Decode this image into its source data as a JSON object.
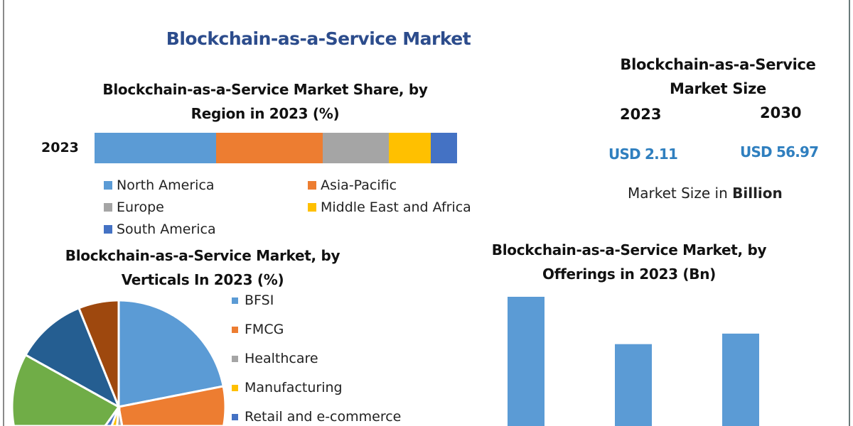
{
  "title": "Blockchain-as-a-Service Market",
  "market_size": {
    "title_line1": "Blockchain-as-a-Service",
    "title_line2": "Market Size",
    "year_a": "2023",
    "year_b": "2030",
    "value_a": "USD 2.11",
    "value_b": "USD 56.97",
    "unit_prefix": "Market Size in ",
    "unit_bold": "Billion"
  },
  "chart_data": [
    {
      "type": "bar",
      "orientation": "horizontal-stacked",
      "title": "Blockchain-as-a-Service Market Share, by Region in 2023 (%)",
      "title_line1": "Blockchain-as-a-Service Market Share, by",
      "title_line2": "Region in 2023 (%)",
      "categories": [
        "2023"
      ],
      "series": [
        {
          "name": "North America",
          "values": [
            33.5
          ],
          "color": "#5b9bd5"
        },
        {
          "name": "Asia-Pacific",
          "values": [
            29.5
          ],
          "color": "#ed7d31"
        },
        {
          "name": "Europe",
          "values": [
            18.2
          ],
          "color": "#a5a5a5"
        },
        {
          "name": "Middle East and Africa",
          "values": [
            11.6
          ],
          "color": "#ffc000"
        },
        {
          "name": "South America",
          "values": [
            7.2
          ],
          "color": "#4472c4"
        }
      ],
      "legend": "bottom"
    },
    {
      "type": "pie",
      "title": "Blockchain-as-a-Service Market, by Verticals In 2023 (%)",
      "title_line1": "Blockchain-as-a-Service Market, by",
      "title_line2": "Verticals In 2023 (%)",
      "slices": [
        {
          "name": "BFSI",
          "value": 21.9,
          "color": "#5b9bd5"
        },
        {
          "name": "FMCG",
          "value": 25.3,
          "color": "#ed7d31"
        },
        {
          "name": "Healthcare",
          "value": 4.2,
          "color": "#a5a5a5"
        },
        {
          "name": "Manufacturing",
          "value": 4.2,
          "color": "#ffc000"
        },
        {
          "name": "Retail and e-commerce",
          "value": 4.2,
          "color": "#4472c4"
        },
        {
          "name": "",
          "value": 23.3,
          "color": "#70ad47"
        },
        {
          "name": "",
          "value": 10.8,
          "color": "#255e91"
        },
        {
          "name": "",
          "value": 6.1,
          "color": "#9e480e"
        }
      ],
      "legend": "right"
    },
    {
      "type": "bar",
      "title": "Blockchain-as-a-Service Market, by Offerings in 2023 (Bn)",
      "title_line1": "Blockchain-as-a-Service Market, by",
      "title_line2": "Offerings in 2023 (Bn)",
      "values": [
        1.0,
        0.73,
        0.79
      ],
      "color": "#5b9bd5"
    }
  ]
}
